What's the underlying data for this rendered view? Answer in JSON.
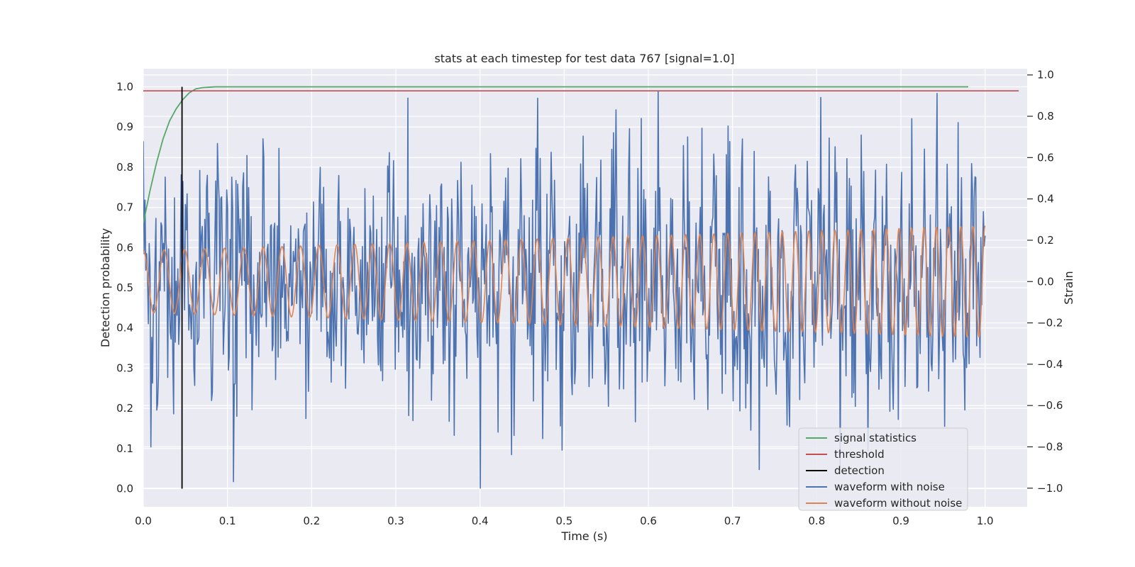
{
  "chart_data": {
    "type": "line",
    "title": "stats at each timestep for test data 767 [signal=1.0]",
    "xlabel": "Time (s)",
    "ylabel_left": "Detection probability",
    "ylabel_right": "Strain",
    "xlim": [
      0.0,
      1.05
    ],
    "ylim_left": [
      -0.045,
      1.045
    ],
    "ylim_right": [
      -1.09,
      1.03
    ],
    "x_ticks": [
      "0.0",
      "0.1",
      "0.2",
      "0.3",
      "0.4",
      "0.5",
      "0.6",
      "0.7",
      "0.8",
      "0.9",
      "1.0"
    ],
    "x_tick_values": [
      0.0,
      0.1,
      0.2,
      0.3,
      0.4,
      0.5,
      0.6,
      0.7,
      0.8,
      0.9,
      1.0
    ],
    "y_ticks_left": [
      "0.0",
      "0.1",
      "0.2",
      "0.3",
      "0.4",
      "0.5",
      "0.6",
      "0.7",
      "0.8",
      "0.9",
      "1.0"
    ],
    "y_tick_values_left": [
      0.0,
      0.1,
      0.2,
      0.3,
      0.4,
      0.5,
      0.6,
      0.7,
      0.8,
      0.9,
      1.0
    ],
    "y_ticks_right": [
      "−1.0",
      "−0.8",
      "−0.6",
      "−0.4",
      "−0.2",
      "0.0",
      "0.2",
      "0.4",
      "0.6",
      "0.8",
      "1.0"
    ],
    "y_tick_values_right": [
      -1.0,
      -0.8,
      -0.6,
      -0.4,
      -0.2,
      0.0,
      0.2,
      0.4,
      0.6,
      0.8,
      1.0
    ],
    "grid": true,
    "legend_position": "lower-right",
    "colors": {
      "plot_background": "#eaeaf2",
      "grid": "#ffffff",
      "signal_statistics": "#55a868",
      "threshold": "#c44e52",
      "detection": "#000000",
      "waveform_with_noise": "#4c72b0",
      "waveform_without_noise": "#dd8452"
    },
    "series": [
      {
        "name": "signal statistics",
        "axis": "left",
        "x": [
          0.0,
          0.0078,
          0.0156,
          0.0234,
          0.0312,
          0.039,
          0.0468,
          0.0546,
          0.0624,
          0.0703,
          0.0781,
          0.0859,
          0.1,
          0.2,
          0.4,
          0.6,
          0.8,
          0.98
        ],
        "values": [
          0.66,
          0.74,
          0.81,
          0.87,
          0.915,
          0.945,
          0.968,
          0.985,
          0.995,
          0.998,
          0.999,
          1.0,
          1.0,
          1.0,
          1.0,
          1.0,
          1.0,
          1.0
        ]
      },
      {
        "name": "threshold",
        "axis": "left",
        "x": [
          0.0,
          1.04
        ],
        "values": [
          0.99,
          0.99
        ]
      },
      {
        "name": "detection",
        "axis": "left",
        "x": [
          0.046,
          0.046
        ],
        "values": [
          0.0,
          1.0
        ]
      },
      {
        "name": "waveform with noise",
        "axis": "right",
        "generated": "noisy",
        "n_points": 1000,
        "x_range": [
          0.0,
          1.0
        ],
        "std": 0.28,
        "range": [
          -1.0,
          0.93
        ]
      },
      {
        "name": "waveform without noise",
        "axis": "right",
        "generated": "chirp",
        "x_range": [
          0.0,
          1.0
        ],
        "f0_hz": 40,
        "f1_hz": 70,
        "amp_start": 0.15,
        "amp_end": 0.27
      }
    ]
  }
}
